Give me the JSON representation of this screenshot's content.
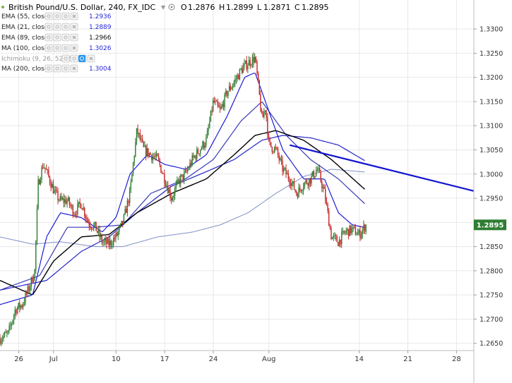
{
  "header": {
    "title": "British Pound/U.S. Dollar, 240, FX_IDC",
    "ohlc": [
      {
        "label": "O",
        "value": "1.2876"
      },
      {
        "label": "H",
        "value": "1.2899"
      },
      {
        "label": "L",
        "value": "1.2871"
      },
      {
        "label": "C",
        "value": "1.2895"
      }
    ]
  },
  "indicators": [
    {
      "label": "EMA (55, close)",
      "value": "1.2936",
      "color": "#2626d9",
      "muted": false
    },
    {
      "label": "EMA (21, close)",
      "value": "1.2889",
      "color": "#2626d9",
      "muted": false
    },
    {
      "label": "EMA (89, close)",
      "value": "1.2966",
      "color": "#111111",
      "muted": false
    },
    {
      "label": "MA (100, close)",
      "value": "1.3026",
      "color": "#2626d9",
      "muted": false
    },
    {
      "label": "Ichimoku (9, 26, 52, 26)",
      "value": "",
      "color": "#999999",
      "muted": true
    },
    {
      "label": "MA (200, close)",
      "value": "1.3004",
      "color": "#2626d9",
      "muted": false
    }
  ],
  "last_price": "1.2895",
  "colors": {
    "up": "#2e7d32",
    "down": "#c62828",
    "ema21": "#1c1cd6",
    "ema55": "#3a3ab8",
    "ema89": "#000000",
    "ma100": "#2424c8",
    "ma200": "#7f8fc7",
    "trendline": "#1515d0",
    "price_label": "#2e7d32",
    "grid": "#e8e8e8"
  },
  "chart_data": {
    "type": "candlestick",
    "title": "British Pound/U.S. Dollar, 240, FX_IDC",
    "ylim": [
      1.2635,
      1.336
    ],
    "y_ticks": [
      "1.2650",
      "1.2700",
      "1.2750",
      "1.2800",
      "1.2850",
      "1.2900",
      "1.2950",
      "1.3000",
      "1.3050",
      "1.3100",
      "1.3150",
      "1.3200",
      "1.3250",
      "1.3300"
    ],
    "x_ticks": [
      {
        "label": "26",
        "day": 0
      },
      {
        "label": "Jul",
        "day": 5
      },
      {
        "label": "10",
        "day": 14
      },
      {
        "label": "17",
        "day": 21
      },
      {
        "label": "24",
        "day": 28
      },
      {
        "label": "Aug",
        "day": 36
      },
      {
        "label": "14",
        "day": 49
      },
      {
        "label": "21",
        "day": 56
      },
      {
        "label": "28",
        "day": 63
      }
    ],
    "x_range_days": [
      -2.7,
      65.5
    ],
    "bars_per_day": 6,
    "close_anchors": [
      [
        -2.7,
        1.266
      ],
      [
        -1.5,
        1.267
      ],
      [
        -0.5,
        1.272
      ],
      [
        0.5,
        1.273
      ],
      [
        1.5,
        1.2765
      ],
      [
        2.3,
        1.28
      ],
      [
        2.8,
        1.298
      ],
      [
        3.5,
        1.302
      ],
      [
        4.0,
        1.3005
      ],
      [
        5.2,
        1.296
      ],
      [
        6.0,
        1.2945
      ],
      [
        7.0,
        1.2945
      ],
      [
        8.0,
        1.292
      ],
      [
        9.0,
        1.294
      ],
      [
        10.0,
        1.29
      ],
      [
        11.0,
        1.289
      ],
      [
        12.0,
        1.286
      ],
      [
        13.0,
        1.2855
      ],
      [
        14.0,
        1.287
      ],
      [
        15.0,
        1.29
      ],
      [
        16.0,
        1.296
      ],
      [
        17.0,
        1.309
      ],
      [
        18.0,
        1.305
      ],
      [
        19.0,
        1.304
      ],
      [
        20.0,
        1.303
      ],
      [
        21.0,
        1.299
      ],
      [
        22.0,
        1.295
      ],
      [
        23.0,
        1.2985
      ],
      [
        24.0,
        1.3
      ],
      [
        25.0,
        1.303
      ],
      [
        26.0,
        1.305
      ],
      [
        27.0,
        1.307
      ],
      [
        28.0,
        1.315
      ],
      [
        29.0,
        1.313
      ],
      [
        30.0,
        1.317
      ],
      [
        31.0,
        1.319
      ],
      [
        32.0,
        1.3215
      ],
      [
        33.0,
        1.323
      ],
      [
        34.0,
        1.324
      ],
      [
        34.5,
        1.318
      ],
      [
        35.0,
        1.311
      ],
      [
        35.5,
        1.314
      ],
      [
        36.0,
        1.306
      ],
      [
        37.0,
        1.305
      ],
      [
        38.0,
        1.301
      ],
      [
        39.0,
        1.299
      ],
      [
        40.0,
        1.296
      ],
      [
        41.0,
        1.298
      ],
      [
        42.0,
        1.299
      ],
      [
        43.0,
        1.301
      ],
      [
        44.0,
        1.296
      ],
      [
        45.0,
        1.287
      ],
      [
        46.0,
        1.286
      ],
      [
        47.0,
        1.288
      ],
      [
        48.0,
        1.2885
      ],
      [
        49.0,
        1.2875
      ],
      [
        50.0,
        1.2895
      ]
    ],
    "moving_averages": {
      "ema21": [
        [
          -2.7,
          1.273
        ],
        [
          2.0,
          1.275
        ],
        [
          4.0,
          1.287
        ],
        [
          6.0,
          1.292
        ],
        [
          9.0,
          1.291
        ],
        [
          12.0,
          1.288
        ],
        [
          14.0,
          1.291
        ],
        [
          16.0,
          1.3
        ],
        [
          18.5,
          1.304
        ],
        [
          21.0,
          1.302
        ],
        [
          24.0,
          1.301
        ],
        [
          27.0,
          1.304
        ],
        [
          30.0,
          1.312
        ],
        [
          32.5,
          1.32
        ],
        [
          34.0,
          1.321
        ],
        [
          36.0,
          1.313
        ],
        [
          38.0,
          1.305
        ],
        [
          41.0,
          1.299
        ],
        [
          44.0,
          1.299
        ],
        [
          46.0,
          1.292
        ],
        [
          48.0,
          1.2895
        ],
        [
          50.0,
          1.2889
        ]
      ],
      "ema55": [
        [
          -2.7,
          1.276
        ],
        [
          3.0,
          1.279
        ],
        [
          7.0,
          1.289
        ],
        [
          11.0,
          1.289
        ],
        [
          15.0,
          1.2895
        ],
        [
          19.0,
          1.296
        ],
        [
          24.0,
          1.299
        ],
        [
          28.0,
          1.303
        ],
        [
          32.0,
          1.311
        ],
        [
          35.0,
          1.315
        ],
        [
          38.5,
          1.308
        ],
        [
          42.0,
          1.303
        ],
        [
          46.0,
          1.299
        ],
        [
          50.0,
          1.2936
        ]
      ],
      "ema89": [
        [
          -2.7,
          1.278
        ],
        [
          2.0,
          1.275
        ],
        [
          5.0,
          1.282
        ],
        [
          9.0,
          1.287
        ],
        [
          13.0,
          1.2875
        ],
        [
          17.0,
          1.292
        ],
        [
          22.0,
          1.296
        ],
        [
          27.0,
          1.299
        ],
        [
          31.0,
          1.304
        ],
        [
          34.0,
          1.308
        ],
        [
          37.0,
          1.309
        ],
        [
          41.0,
          1.307
        ],
        [
          45.0,
          1.303
        ],
        [
          50.0,
          1.2966
        ]
      ],
      "ma100": [
        [
          -2.7,
          1.276
        ],
        [
          4.0,
          1.278
        ],
        [
          9.0,
          1.284
        ],
        [
          13.0,
          1.287
        ],
        [
          17.0,
          1.292
        ],
        [
          22.0,
          1.2975
        ],
        [
          27.0,
          1.3005
        ],
        [
          31.0,
          1.303
        ],
        [
          35.0,
          1.307
        ],
        [
          38.0,
          1.308
        ],
        [
          42.0,
          1.3075
        ],
        [
          46.0,
          1.306
        ],
        [
          50.0,
          1.3026
        ]
      ],
      "ma200": [
        [
          -2.7,
          1.287
        ],
        [
          2.0,
          1.2855
        ],
        [
          6.0,
          1.286
        ],
        [
          11.0,
          1.285
        ],
        [
          15.0,
          1.285
        ],
        [
          20.0,
          1.287
        ],
        [
          25.0,
          1.288
        ],
        [
          29.0,
          1.2895
        ],
        [
          33.0,
          1.292
        ],
        [
          37.0,
          1.296
        ],
        [
          41.0,
          1.2995
        ],
        [
          45.0,
          1.301
        ],
        [
          50.0,
          1.3004
        ]
      ]
    },
    "trendline": [
      [
        39.0,
        1.306
      ],
      [
        65.5,
        1.2965
      ]
    ],
    "grid": true
  }
}
